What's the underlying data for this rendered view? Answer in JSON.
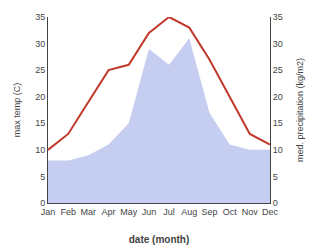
{
  "chart_data": {
    "type": "line",
    "xlabel": "date (month)",
    "ylabel": "max temp (C)",
    "y2label": "med. precipitation (kg/m2)",
    "categories": [
      "Jan",
      "Feb",
      "Mar",
      "Apr",
      "May",
      "Jun",
      "Jul",
      "Aug",
      "Sep",
      "Oct",
      "Nov",
      "Dec"
    ],
    "series": [
      {
        "type": "line",
        "color": "#c0392b",
        "values": [
          10,
          13,
          19,
          25,
          26,
          32,
          35,
          33,
          27,
          20,
          13,
          11
        ]
      },
      {
        "type": "area",
        "color": "#c5cef0",
        "axis": "y2",
        "values": [
          8,
          8,
          9,
          11,
          15,
          29,
          26,
          31,
          17,
          11,
          10,
          10
        ]
      }
    ],
    "ylim": [
      0,
      35
    ],
    "yticks": [
      0,
      5,
      10,
      15,
      20,
      25,
      30,
      35
    ],
    "y2lim": [
      0,
      35
    ],
    "y2ticks": [
      0,
      5,
      10,
      15,
      20,
      25,
      30,
      35
    ],
    "grid": false
  }
}
